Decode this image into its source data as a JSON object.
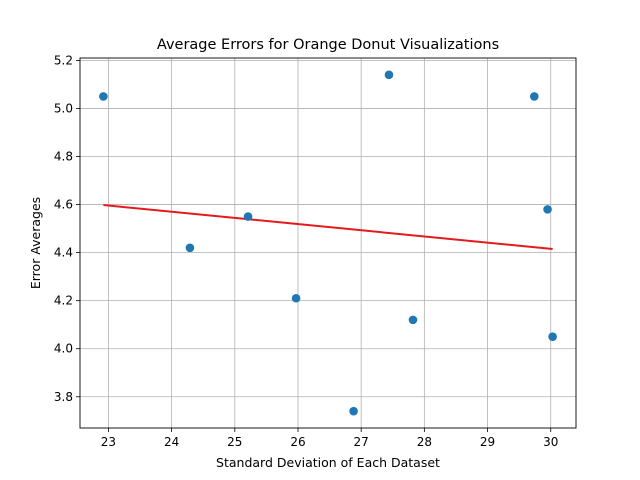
{
  "chart_data": {
    "type": "scatter",
    "title": "Average Errors for Orange Donut Visualizations",
    "xlabel": "Standard Deviation of Each Dataset",
    "ylabel": "Error Averages",
    "xlim": [
      22.55,
      30.4
    ],
    "ylim": [
      3.67,
      5.21
    ],
    "x_ticks": [
      23,
      24,
      25,
      26,
      27,
      28,
      29,
      30
    ],
    "x_tick_labels": [
      "23",
      "24",
      "25",
      "26",
      "27",
      "28",
      "29",
      "30"
    ],
    "y_ticks": [
      3.8,
      4.0,
      4.2,
      4.4,
      4.6,
      4.8,
      5.0,
      5.2
    ],
    "y_tick_labels": [
      "3.8",
      "4.0",
      "4.2",
      "4.4",
      "4.6",
      "4.8",
      "5.0",
      "5.2"
    ],
    "grid": true,
    "series": [
      {
        "kind": "points",
        "color": "#1f77b4",
        "x": [
          22.92,
          24.29,
          25.21,
          25.97,
          26.88,
          27.44,
          27.82,
          29.74,
          29.95,
          30.03
        ],
        "y": [
          5.05,
          4.42,
          4.55,
          4.21,
          3.74,
          5.14,
          4.12,
          5.05,
          4.58,
          4.05
        ]
      },
      {
        "kind": "fit-line",
        "color": "#e41a1c",
        "x": [
          22.92,
          30.03
        ],
        "y": [
          4.598,
          4.415
        ]
      }
    ]
  }
}
